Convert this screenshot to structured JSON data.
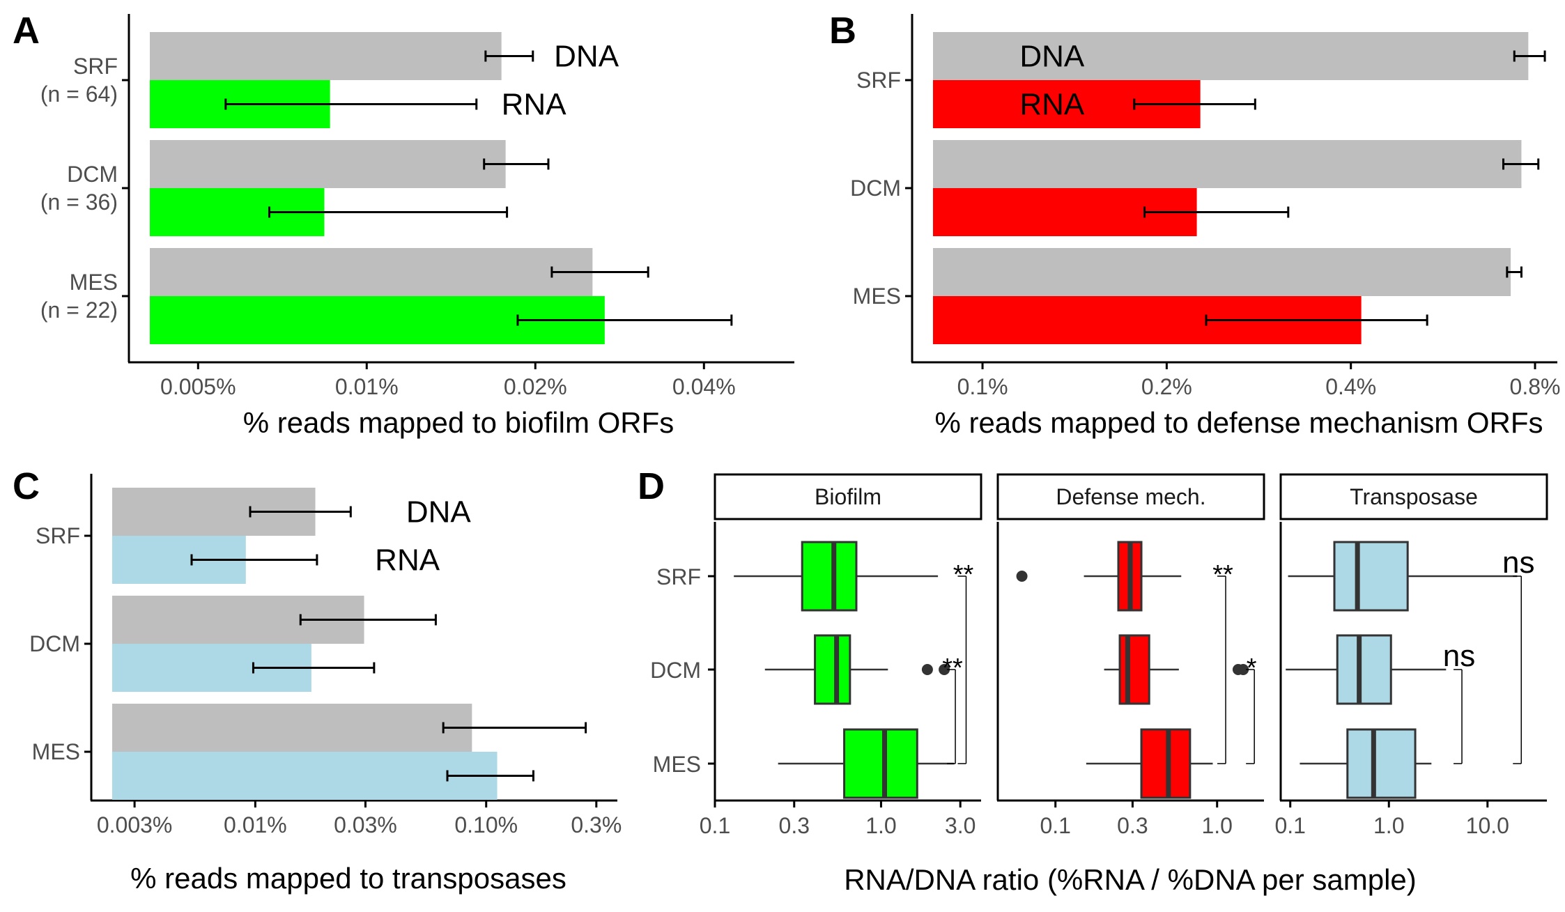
{
  "colors": {
    "dna": "#bebebe",
    "rna_biofilm": "#00ff00",
    "rna_defense": "#ff0000",
    "rna_transposase": "#add8e6",
    "axis": "#000000",
    "tick_text": "#4d4d4d",
    "box_line": "#333333"
  },
  "chart_data": [
    {
      "panel": "A",
      "type": "bar",
      "orientation": "horizontal",
      "scale": "log10",
      "xlabel": "% reads mapped to biofilm ORFs",
      "xticks": [
        {
          "value": 0.005,
          "label": "0.005%"
        },
        {
          "value": 0.01,
          "label": "0.01%"
        },
        {
          "value": 0.02,
          "label": "0.02%"
        },
        {
          "value": 0.04,
          "label": "0.04%"
        }
      ],
      "xlim": [
        0.0041,
        0.058
      ],
      "categories": [
        {
          "key": "SRF",
          "label": [
            "SRF",
            "(n = 64)"
          ]
        },
        {
          "key": "DCM",
          "label": [
            "DCM",
            "(n = 36)"
          ]
        },
        {
          "key": "MES",
          "label": [
            "MES",
            "(n = 22)"
          ]
        }
      ],
      "series": [
        {
          "name": "DNA",
          "label": "DNA",
          "color_key": "dna",
          "values": [
            0.0174,
            0.0177,
            0.0253
          ],
          "err_low": [
            0.0163,
            0.0162,
            0.0214
          ],
          "err_high": [
            0.0198,
            0.0211,
            0.0318
          ]
        },
        {
          "name": "RNA",
          "label": "RNA",
          "color_key": "rna_biofilm",
          "values": [
            0.0086,
            0.0084,
            0.0266
          ],
          "err_low": [
            0.0056,
            0.0067,
            0.0186
          ],
          "err_high": [
            0.0157,
            0.0178,
            0.0448
          ]
        }
      ],
      "labels": [
        {
          "text": "DNA",
          "series": "DNA",
          "category": "SRF",
          "x": 0.0216
        },
        {
          "text": "RNA",
          "series": "RNA",
          "category": "SRF",
          "x": 0.0174
        }
      ]
    },
    {
      "panel": "B",
      "type": "bar",
      "orientation": "horizontal",
      "scale": "log10",
      "xlabel": "% reads mapped to defense mechanism ORFs",
      "xticks": [
        {
          "value": 0.1,
          "label": "0.1%"
        },
        {
          "value": 0.2,
          "label": "0.2%"
        },
        {
          "value": 0.4,
          "label": "0.4%"
        },
        {
          "value": 0.8,
          "label": "0.8%"
        }
      ],
      "xlim": [
        0.083,
        0.87
      ],
      "categories": [
        {
          "key": "SRF",
          "label": [
            "SRF"
          ]
        },
        {
          "key": "DCM",
          "label": [
            "DCM"
          ]
        },
        {
          "key": "MES",
          "label": [
            "MES"
          ]
        }
      ],
      "series": [
        {
          "name": "DNA",
          "label": "DNA",
          "color_key": "dna",
          "values": [
            0.78,
            0.76,
            0.73
          ],
          "err_low": [
            0.74,
            0.71,
            0.72
          ],
          "err_high": [
            0.83,
            0.81,
            0.76
          ]
        },
        {
          "name": "RNA",
          "label": "RNA",
          "color_key": "rna_defense",
          "values": [
            0.227,
            0.224,
            0.416
          ],
          "err_low": [
            0.177,
            0.184,
            0.232
          ],
          "err_high": [
            0.279,
            0.316,
            0.533
          ]
        }
      ],
      "labels": [
        {
          "text": "DNA",
          "series": "DNA",
          "category": "SRF",
          "x": 0.115
        },
        {
          "text": "RNA",
          "series": "RNA",
          "category": "SRF",
          "x": 0.115
        }
      ]
    },
    {
      "panel": "C",
      "type": "bar",
      "orientation": "horizontal",
      "scale": "log10",
      "xlabel": "% reads mapped to transposases",
      "xticks": [
        {
          "value": 0.003,
          "label": "0.003%"
        },
        {
          "value": 0.01,
          "label": "0.01%"
        },
        {
          "value": 0.03,
          "label": "0.03%"
        },
        {
          "value": 0.1,
          "label": "0.10%"
        },
        {
          "value": 0.3,
          "label": "0.3%"
        }
      ],
      "xlim": [
        0.0024,
        0.37
      ],
      "categories": [
        {
          "key": "SRF",
          "label": [
            "SRF"
          ]
        },
        {
          "key": "DCM",
          "label": [
            "DCM"
          ]
        },
        {
          "key": "MES",
          "label": [
            "MES"
          ]
        }
      ],
      "series": [
        {
          "name": "DNA",
          "label": "DNA",
          "color_key": "dna",
          "values": [
            0.0182,
            0.0296,
            0.0868
          ],
          "err_low": [
            0.0095,
            0.0157,
            0.0652
          ],
          "err_high": [
            0.0259,
            0.0605,
            0.2699
          ]
        },
        {
          "name": "RNA",
          "label": "RNA",
          "color_key": "rna_transposase",
          "values": [
            0.0091,
            0.0175,
            0.1116
          ],
          "err_low": [
            0.0053,
            0.0098,
            0.0679
          ],
          "err_high": [
            0.0185,
            0.0327,
            0.1601
          ]
        }
      ],
      "labels": [
        {
          "text": "DNA",
          "series": "DNA",
          "category": "SRF",
          "x": 0.045
        },
        {
          "text": "RNA",
          "series": "RNA",
          "category": "SRF",
          "x": 0.033
        }
      ]
    },
    {
      "panel": "D",
      "type": "boxplot",
      "orientation": "horizontal",
      "scale": "log10",
      "xlabel": "RNA/DNA ratio (%RNA / %DNA per sample)",
      "categories": [
        "SRF",
        "DCM",
        "MES"
      ],
      "facets": [
        {
          "strip": "Biofilm",
          "color_key": "rna_biofilm",
          "xlim": [
            0.1,
            4.0
          ],
          "xticks": [
            {
              "value": 0.1,
              "label": "0.1"
            },
            {
              "value": 0.3,
              "label": "0.3"
            },
            {
              "value": 1.0,
              "label": "1.0"
            },
            {
              "value": 3.0,
              "label": "3.0"
            }
          ],
          "boxes": [
            {
              "category": "SRF",
              "whisker_low": 0.13,
              "q1": 0.335,
              "median": 0.52,
              "q3": 0.71,
              "whisker_high": 2.2,
              "outliers": []
            },
            {
              "category": "DCM",
              "whisker_low": 0.2,
              "q1": 0.4,
              "median": 0.54,
              "q3": 0.65,
              "whisker_high": 1.1,
              "outliers": [
                1.9,
                2.4
              ]
            },
            {
              "category": "MES",
              "whisker_low": 0.24,
              "q1": 0.6,
              "median": 1.05,
              "q3": 1.65,
              "whisker_high": 2.75,
              "outliers": []
            }
          ],
          "comparisons": [
            {
              "from": "SRF",
              "to": "MES",
              "x": 3.25,
              "label": "**",
              "label_category": "SRF"
            },
            {
              "from": "DCM",
              "to": "MES",
              "x": 2.8,
              "label": "**",
              "label_category": "DCM"
            }
          ]
        },
        {
          "strip": "Defense mech.",
          "color_key": "rna_defense",
          "xlim": [
            0.044,
            1.95
          ],
          "xticks": [
            {
              "value": 0.1,
              "label": "0.1"
            },
            {
              "value": 0.3,
              "label": "0.3"
            },
            {
              "value": 1.0,
              "label": "1.0"
            }
          ],
          "boxes": [
            {
              "category": "SRF",
              "whisker_low": 0.15,
              "q1": 0.245,
              "median": 0.29,
              "q3": 0.34,
              "whisker_high": 0.6,
              "outliers": [
                0.062
              ]
            },
            {
              "category": "DCM",
              "whisker_low": 0.2,
              "q1": 0.25,
              "median": 0.28,
              "q3": 0.38,
              "whisker_high": 0.58,
              "outliers": [
                1.35,
                1.45
              ]
            },
            {
              "category": "MES",
              "whisker_low": 0.155,
              "q1": 0.34,
              "median": 0.5,
              "q3": 0.68,
              "whisker_high": 0.94,
              "outliers": []
            }
          ],
          "comparisons": [
            {
              "from": "SRF",
              "to": "MES",
              "x": 1.13,
              "label": "**",
              "label_category": "SRF"
            },
            {
              "from": "DCM",
              "to": "MES",
              "x": 1.7,
              "label": "*",
              "label_category": "DCM"
            }
          ]
        },
        {
          "strip": "Transposase",
          "color_key": "rna_transposase",
          "xlim": [
            0.08,
            40
          ],
          "xticks": [
            {
              "value": 0.1,
              "label": "0.1"
            },
            {
              "value": 1.0,
              "label": "1.0"
            },
            {
              "value": 10.0,
              "label": "10.0"
            }
          ],
          "boxes": [
            {
              "category": "SRF",
              "whisker_low": 0.095,
              "q1": 0.28,
              "median": 0.48,
              "q3": 1.55,
              "whisker_high": 20,
              "outliers": []
            },
            {
              "category": "DCM",
              "whisker_low": 0.09,
              "q1": 0.3,
              "median": 0.5,
              "q3": 1.05,
              "whisker_high": 3.8,
              "outliers": []
            },
            {
              "category": "MES",
              "whisker_low": 0.125,
              "q1": 0.38,
              "median": 0.7,
              "q3": 1.85,
              "whisker_high": 2.7,
              "outliers": []
            }
          ],
          "comparisons": [
            {
              "from": "SRF",
              "to": "MES",
              "x": 22,
              "label": "ns",
              "label_category": "SRF"
            },
            {
              "from": "DCM",
              "to": "MES",
              "x": 5.5,
              "label": "ns",
              "label_category": "DCM"
            }
          ]
        }
      ]
    }
  ]
}
